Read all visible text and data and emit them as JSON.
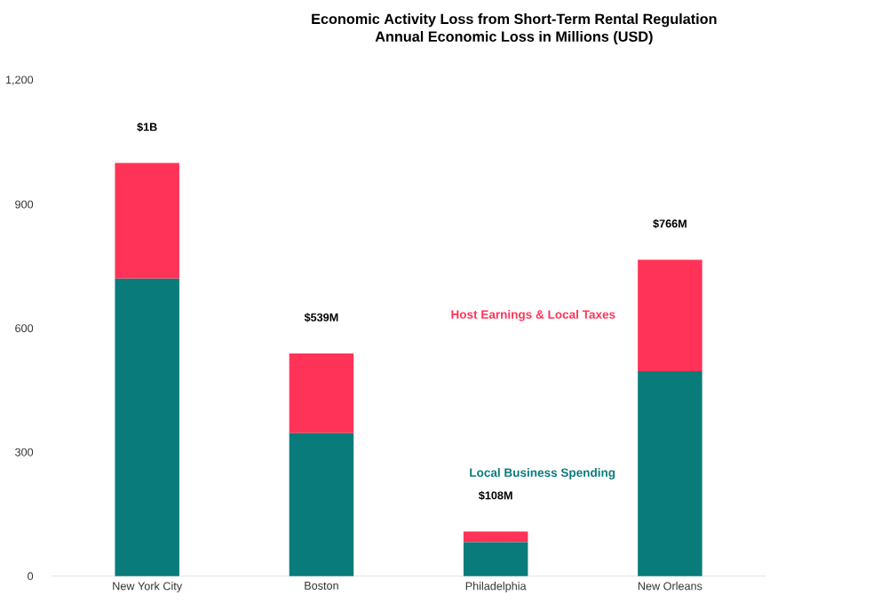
{
  "chart_data": {
    "type": "bar",
    "title": "Economic Activity Loss from Short-Term Rental Regulation",
    "subtitle": "Annual Economic Loss in Millions (USD)",
    "categories": [
      "New York City",
      "Boston",
      "Philadelphia",
      "New Orleans"
    ],
    "stacked": true,
    "series": [
      {
        "name": "Local Business Spending",
        "color": "#0a7b7b",
        "values": [
          720,
          346,
          82,
          496
        ]
      },
      {
        "name": "Host Earnings & Local Taxes",
        "color": "#ff3358",
        "values": [
          280,
          193,
          26,
          270
        ]
      }
    ],
    "totals": [
      "$1B",
      "$539M",
      "$108M",
      "$766M"
    ],
    "ylim": [
      0,
      1200
    ],
    "yticks": [
      0,
      300,
      600,
      900,
      {
        "value": 1200,
        "label": "1,200"
      }
    ],
    "grid": false,
    "legend": false
  }
}
